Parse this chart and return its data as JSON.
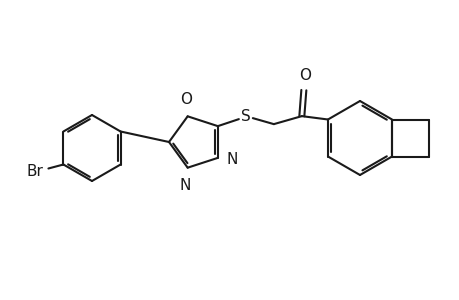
{
  "bg_color": "#ffffff",
  "line_color": "#1a1a1a",
  "line_width": 1.5,
  "font_size": 11,
  "atoms": {
    "Br": "Br",
    "N1": "N",
    "N2": "N",
    "O_ring": "O",
    "S": "S",
    "O_carbonyl": "O"
  }
}
